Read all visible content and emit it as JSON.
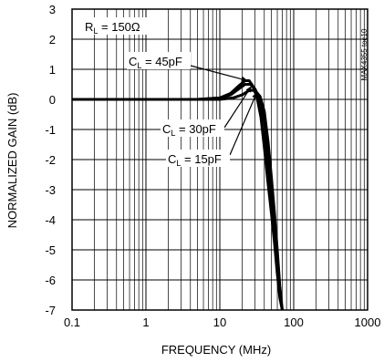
{
  "chart_data": {
    "type": "line",
    "x_scale": "log",
    "xlim": [
      0.1,
      1000
    ],
    "ylim": [
      -7,
      3
    ],
    "xlabel": "FREQUENCY (MHz)",
    "ylabel": "NORMALIZED GAIN (dB)",
    "x_ticks": [
      "0.1",
      "1",
      "10",
      "100",
      "1000"
    ],
    "y_ticks": [
      "3",
      "2",
      "1",
      "0",
      "-1",
      "-2",
      "-3",
      "-4",
      "-5",
      "-6",
      "-7"
    ],
    "grid": true,
    "legend": "none",
    "side_label": "MAX4355 toc10",
    "annotations": {
      "load": {
        "main": "R",
        "sub": "L",
        "rest": " = 150Ω"
      },
      "c45": {
        "main": "C",
        "sub": "L",
        "rest": " = 45pF"
      },
      "c30": {
        "main": "C",
        "sub": "L",
        "rest": " = 30pF"
      },
      "c15": {
        "main": "C",
        "sub": "L",
        "rest": " = 15pF"
      }
    },
    "series": [
      {
        "name": "CL = 45pF",
        "x": [
          0.1,
          1,
          5,
          10,
          14,
          18,
          22,
          25,
          28,
          32,
          36,
          40,
          45,
          50,
          55,
          60,
          65,
          70
        ],
        "y": [
          0,
          0,
          0,
          0.05,
          0.2,
          0.45,
          0.62,
          0.62,
          0.45,
          0.05,
          -0.6,
          -1.6,
          -2.8,
          -3.8,
          -4.8,
          -5.8,
          -6.6,
          -7
        ]
      },
      {
        "name": "CL = 30pF",
        "x": [
          0.1,
          1,
          5,
          10,
          14,
          18,
          22,
          26,
          30,
          35,
          40,
          45,
          50,
          55,
          60,
          65,
          70
        ],
        "y": [
          0,
          0,
          0,
          0.05,
          0.15,
          0.35,
          0.5,
          0.5,
          0.35,
          -0.05,
          -0.8,
          -2.0,
          -3.2,
          -4.4,
          -5.5,
          -6.5,
          -7
        ]
      },
      {
        "name": "CL = 15pF",
        "x": [
          0.1,
          1,
          5,
          10,
          15,
          20,
          25,
          30,
          35,
          40,
          45,
          50,
          55,
          60,
          65,
          70
        ],
        "y": [
          0,
          0,
          0,
          0.0,
          0.05,
          0.15,
          0.3,
          0.3,
          0.1,
          -0.4,
          -1.4,
          -2.6,
          -3.8,
          -5.0,
          -6.2,
          -7
        ]
      }
    ]
  }
}
